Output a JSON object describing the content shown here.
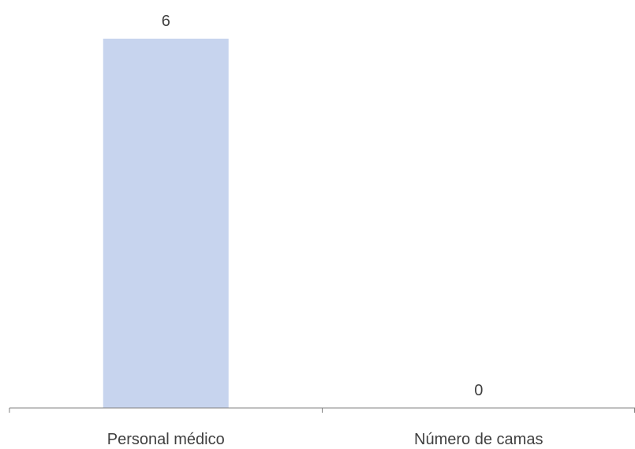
{
  "chart_data": {
    "type": "bar",
    "categories": [
      "Personal médico",
      "Número de camas"
    ],
    "values": [
      6,
      0
    ],
    "data_labels": [
      "6",
      "0"
    ],
    "title": "",
    "xlabel": "",
    "ylabel": "",
    "ylim": [
      0,
      6
    ],
    "grid": false,
    "legend": "none",
    "colors": {
      "bar": "#c7d4ee",
      "axis": "#808080",
      "text": "#404040"
    }
  }
}
